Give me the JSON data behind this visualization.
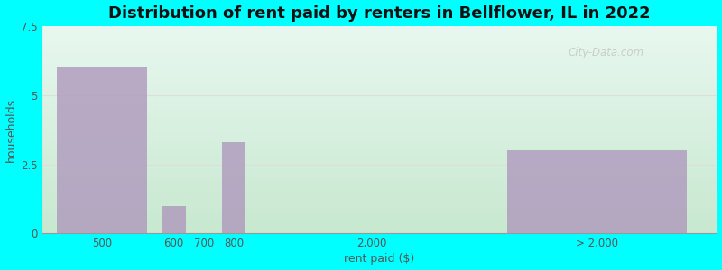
{
  "title": "Distribution of rent paid by renters in Bellflower, IL in 2022",
  "xlabel": "rent paid ($)",
  "ylabel": "households",
  "bar_categories": [
    "500",
    "600",
    "700",
    "800",
    "2,000",
    "> 2,000"
  ],
  "bar_values": [
    6,
    1,
    0,
    3.3,
    0,
    3
  ],
  "bar_color": "#b09abe",
  "bar_alpha": 0.82,
  "ylim": [
    0,
    7.5
  ],
  "yticks": [
    0,
    2.5,
    5,
    7.5
  ],
  "background_color": "#00ffff",
  "grad_color_topleft": "#d0eed8",
  "grad_color_topright": "#e8f8f0",
  "grad_color_bottomleft": "#c8e8d0",
  "grad_color_bottomright": "#f0fbf4",
  "title_fontsize": 13,
  "axis_label_fontsize": 9,
  "tick_fontsize": 8.5,
  "watermark": "City-Data.com",
  "watermark_color": "#c0c0c0",
  "tick_label_color": "#555555",
  "spine_color": "#999999",
  "gridline_color": "#dddddd"
}
